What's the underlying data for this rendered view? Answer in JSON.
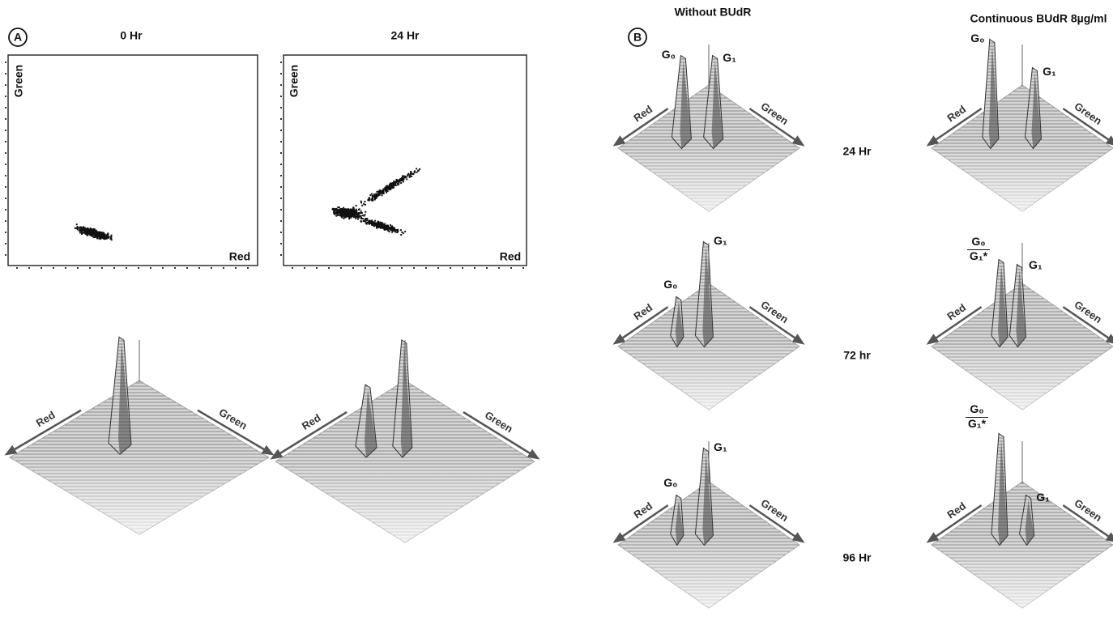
{
  "panel_a": {
    "label": "A",
    "columns": [
      {
        "title": "0 Hr",
        "scatter": {
          "y_axis": "Green",
          "x_axis": "Red"
        },
        "surface": {
          "red": "Red",
          "green": "Green"
        }
      },
      {
        "title": "24 Hr",
        "scatter": {
          "y_axis": "Green",
          "x_axis": "Red"
        },
        "surface": {
          "red": "Red",
          "green": "Green"
        }
      }
    ]
  },
  "panel_b": {
    "label": "B",
    "column_titles": [
      "Without BUdR",
      "Continuous BUdR 8µg/ml"
    ],
    "rows": [
      {
        "time": "24 Hr",
        "plots": [
          {
            "red": "Red",
            "green": "Green",
            "peaks": [
              "G₀",
              "G₁"
            ]
          },
          {
            "red": "Red",
            "green": "Green",
            "peaks": [
              "G₀",
              "G₁"
            ]
          }
        ]
      },
      {
        "time": "72 hr",
        "plots": [
          {
            "red": "Red",
            "green": "Green",
            "peaks": [
              "G₀",
              "G₁"
            ]
          },
          {
            "red": "Red",
            "green": "Green",
            "peaks": [
              {
                "top": "G₀",
                "bottom": "G₁*"
              },
              "G₁"
            ]
          }
        ]
      },
      {
        "time": "96 Hr",
        "plots": [
          {
            "red": "Red",
            "green": "Green",
            "peaks": [
              "G₀",
              "G₁"
            ]
          },
          {
            "red": "Red",
            "green": "Green",
            "peaks": [
              {
                "top": "G₀",
                "bottom": "G₁*"
              },
              "G₁"
            ]
          }
        ]
      }
    ]
  }
}
